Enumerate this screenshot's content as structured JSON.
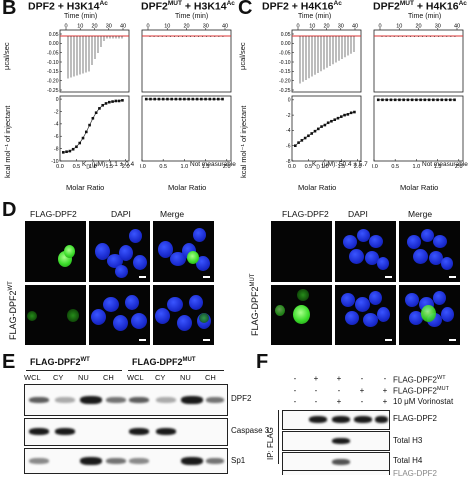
{
  "letters": {
    "b": "B",
    "c": "C",
    "d": "D",
    "e": "E",
    "f": "F"
  },
  "itc": {
    "titles": [
      {
        "main": "DPF2 + H3K14",
        "sup": "Ac"
      },
      {
        "main": "DPF2",
        "sup1": "MUT",
        "mid": " + H3K14",
        "sup2": "Ac"
      },
      {
        "main": "DPF2 + H4K16",
        "sup": "Ac"
      },
      {
        "main": "DPF2",
        "sup1": "MUT",
        "mid": " + H4K16",
        "sup2": "Ac"
      }
    ],
    "time_label": "Time (min)",
    "time_ticks": [
      "0",
      "10",
      "20",
      "30",
      "40"
    ],
    "raw_ylabel": "μcal/sec",
    "fit_ylabel": "kcal mol⁻¹ of injectant",
    "raw_yticks_b": [
      "0.05",
      "0.00",
      "-0.05",
      "-0.10",
      "-0.15",
      "-0.20",
      "-0.25"
    ],
    "raw_yticks_c": [
      "0.05",
      "0.00",
      "-0.05",
      "-0.10",
      "-0.15",
      "-0.20",
      "-0.25"
    ],
    "fit_yticks_b": [
      "0",
      "-2",
      "-4",
      "-6",
      "-8",
      "-10"
    ],
    "fit_yticks_c": [
      "0",
      "-2",
      "-4",
      "-6",
      "-8"
    ],
    "xlabel": "Molar Ratio",
    "xticks": [
      "0.0",
      "0.5",
      "1.0",
      "1.5",
      "2.0"
    ],
    "annotations": [
      "K",
      "D",
      " (μM): 1.1 ± 0.4",
      "Not measurable",
      " (μM): 50.4 ± 5.7",
      "Not measurable"
    ]
  },
  "chart_data": [
    {
      "type": "scatter",
      "title": "DPF2 + H3K14Ac",
      "xlabel": "Molar Ratio",
      "ylabel": "kcal mol⁻¹ of injectant",
      "xlim": [
        0,
        2.1
      ],
      "ylim": [
        -10,
        0.5
      ],
      "x": [
        0.1,
        0.2,
        0.3,
        0.4,
        0.5,
        0.6,
        0.7,
        0.8,
        0.9,
        1.0,
        1.1,
        1.2,
        1.3,
        1.4,
        1.5,
        1.6,
        1.7,
        1.8,
        1.9
      ],
      "y": [
        -8.6,
        -8.5,
        -8.4,
        -8.1,
        -7.7,
        -7.1,
        -6.3,
        -5.3,
        -4.2,
        -3.1,
        -2.2,
        -1.5,
        -1.0,
        -0.7,
        -0.5,
        -0.4,
        -0.3,
        -0.3,
        -0.2
      ]
    },
    {
      "type": "scatter",
      "title": "DPF2MUT + H3K14Ac",
      "xlabel": "Molar Ratio",
      "xlim": [
        0,
        2.1
      ],
      "ylim": [
        -10,
        0.5
      ],
      "x": [
        0.1,
        0.2,
        0.3,
        0.4,
        0.5,
        0.6,
        0.7,
        0.8,
        0.9,
        1.0,
        1.1,
        1.2,
        1.3,
        1.4,
        1.5,
        1.6,
        1.7,
        1.8,
        1.9
      ],
      "y": [
        0,
        0,
        0,
        0,
        0,
        0,
        0,
        0,
        0,
        0,
        0,
        0,
        0,
        0,
        0,
        0,
        0,
        0,
        0
      ]
    },
    {
      "type": "scatter",
      "title": "DPF2 + H4K16Ac",
      "xlabel": "Molar Ratio",
      "ylabel": "kcal mol⁻¹ of injectant",
      "xlim": [
        0,
        2.1
      ],
      "ylim": [
        -8,
        0.5
      ],
      "x": [
        0.1,
        0.2,
        0.3,
        0.4,
        0.5,
        0.6,
        0.7,
        0.8,
        0.9,
        1.0,
        1.1,
        1.2,
        1.3,
        1.4,
        1.5,
        1.6,
        1.7,
        1.8,
        1.9
      ],
      "y": [
        -6.0,
        -5.6,
        -5.3,
        -5.0,
        -4.7,
        -4.4,
        -4.1,
        -3.8,
        -3.5,
        -3.3,
        -3.0,
        -2.8,
        -2.6,
        -2.4,
        -2.2,
        -2.0,
        -1.9,
        -1.7,
        -1.6
      ]
    },
    {
      "type": "scatter",
      "title": "DPF2MUT + H4K16Ac",
      "xlabel": "Molar Ratio",
      "xlim": [
        0,
        2.1
      ],
      "ylim": [
        -8,
        0.5
      ],
      "x": [
        0.1,
        0.2,
        0.3,
        0.4,
        0.5,
        0.6,
        0.7,
        0.8,
        0.9,
        1.0,
        1.1,
        1.2,
        1.3,
        1.4,
        1.5,
        1.6,
        1.7,
        1.8,
        1.9
      ],
      "y": [
        0,
        0,
        0,
        0,
        0,
        0,
        0,
        0,
        0,
        0,
        0,
        0,
        0,
        0,
        0,
        0,
        0,
        0,
        0
      ]
    }
  ],
  "microscopy": {
    "headers": [
      "FLAG-DPF2",
      "DAPI",
      "Merge"
    ],
    "row_label_left": {
      "main": "FLAG-DPF2",
      "sup": "WT"
    },
    "row_label_right": {
      "main": "FLAG-DPF2",
      "sup": "MUT"
    }
  },
  "blot_e": {
    "group1": {
      "main": "FLAG-DPF2",
      "sup": "WT"
    },
    "group2": {
      "main": "FLAG-DPF2",
      "sup": "MUT"
    },
    "lanes": [
      "WCL",
      "CY",
      "NU",
      "CH",
      "WCL",
      "CY",
      "NU",
      "CH"
    ],
    "rows": [
      "DPF2",
      "Caspase 3",
      "Sp1"
    ]
  },
  "blot_f": {
    "conditions": [
      {
        "main": "FLAG-DPF2",
        "sup": "WT",
        "marks": [
          "-",
          "+",
          "+",
          "-",
          "-"
        ]
      },
      {
        "main": "FLAG-DPF2",
        "sup": "MUT",
        "marks": [
          "-",
          "-",
          "-",
          "+",
          "+"
        ]
      },
      {
        "main": "10 μM Vorinostat",
        "marks": [
          "-",
          "-",
          "+",
          "-",
          "+"
        ]
      }
    ],
    "side_label": "IP: FLAG",
    "rows": [
      "FLAG-DPF2",
      "Total H3",
      "Total H4",
      "FLAG-DPF2"
    ]
  }
}
